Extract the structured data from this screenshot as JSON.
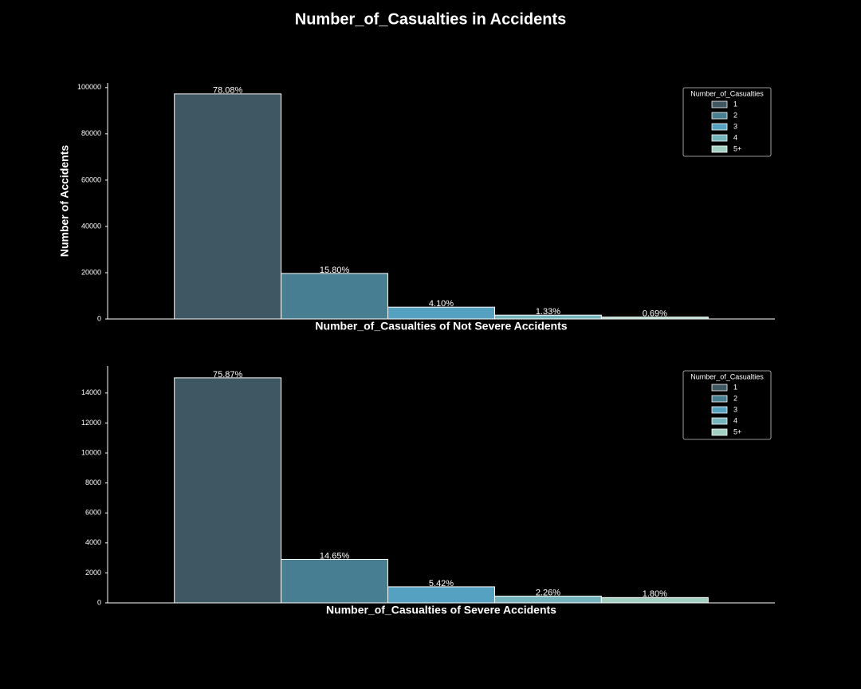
{
  "title": "Number_of_Casualties in Accidents",
  "chart_data": [
    {
      "type": "bar",
      "xlabel": "Number_of_Casualties of Not Severe Accidents",
      "ylabel": "Number of Accidents",
      "legend_title": "Number_of_Casualties",
      "legend": "upper right",
      "ylim": [
        0,
        102000
      ],
      "yticks": [
        0,
        20000,
        40000,
        60000,
        80000,
        100000
      ],
      "series": [
        {
          "name": "1",
          "color": "#3e5762",
          "values": [
            97240
          ],
          "value_labels": [
            "78.08%"
          ]
        },
        {
          "name": "2",
          "color": "#487e91",
          "values": [
            19680
          ],
          "value_labels": [
            "15.80%"
          ]
        },
        {
          "name": "3",
          "color": "#54a1c1",
          "values": [
            5110
          ],
          "value_labels": [
            "4.10%"
          ]
        },
        {
          "name": "4",
          "color": "#74b4bc",
          "values": [
            1660
          ],
          "value_labels": [
            "1.33%"
          ]
        },
        {
          "name": "5+",
          "color": "#a2d1c3",
          "values": [
            860
          ],
          "value_labels": [
            "0.69%"
          ]
        }
      ]
    },
    {
      "type": "bar",
      "xlabel": "Number_of_Casualties of Severe Accidents",
      "legend_title": "Number_of_Casualties",
      "legend": "upper right",
      "ylim": [
        0,
        15800
      ],
      "yticks": [
        0,
        2000,
        4000,
        6000,
        8000,
        10000,
        12000,
        14000
      ],
      "series": [
        {
          "name": "1",
          "color": "#3e5762",
          "values": [
            15010
          ],
          "value_labels": [
            "75.87%"
          ]
        },
        {
          "name": "2",
          "color": "#487e91",
          "values": [
            2900
          ],
          "value_labels": [
            "14.65%"
          ]
        },
        {
          "name": "3",
          "color": "#54a1c1",
          "values": [
            1070
          ],
          "value_labels": [
            "5.42%"
          ]
        },
        {
          "name": "4",
          "color": "#74b4bc",
          "values": [
            450
          ],
          "value_labels": [
            "2.26%"
          ]
        },
        {
          "name": "5+",
          "color": "#a2d1c3",
          "values": [
            355
          ],
          "value_labels": [
            "1.80%"
          ]
        }
      ]
    }
  ]
}
